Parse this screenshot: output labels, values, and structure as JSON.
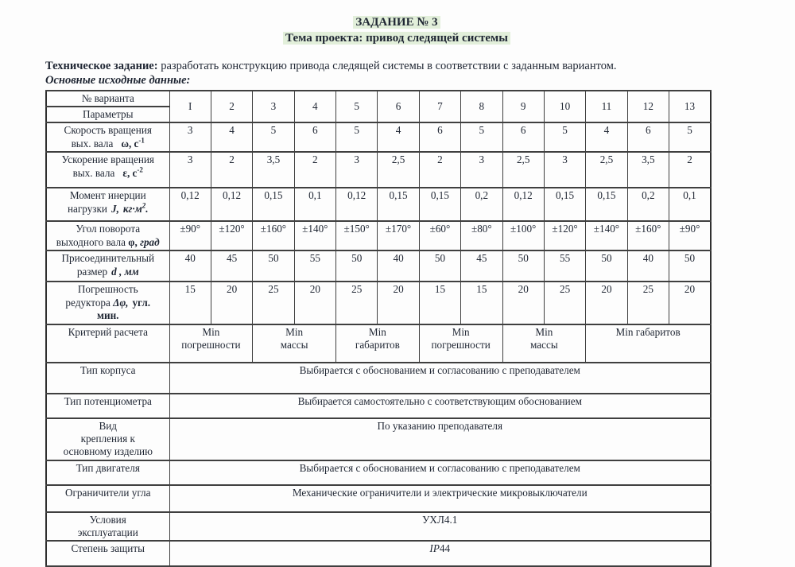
{
  "page": {
    "title": "ЗАДАНИЕ № 3",
    "subtitle": "Тема проекта: привод следящей системы",
    "tech_label": "Техническое задание:",
    "tech_text": " разработать конструкцию привода следящей системы в соответствии с заданным вариантом.",
    "data_label": "Основные исходные данные:",
    "highlight_color": "#e2efda"
  },
  "table": {
    "variant_header": "№ варианта",
    "params_header": "Параметры",
    "variants": [
      "I",
      "2",
      "3",
      "4",
      "5",
      "6",
      "7",
      "8",
      "9",
      "10",
      "11",
      "12",
      "13"
    ],
    "params": {
      "speed": {
        "l1": "Скорость вращения",
        "l2": "вых. вала",
        "sym": "ω, с",
        "sup": "-1",
        "values": [
          "3",
          "4",
          "5",
          "6",
          "5",
          "4",
          "6",
          "5",
          "6",
          "5",
          "4",
          "6",
          "5"
        ]
      },
      "accel": {
        "l1": "Ускорение вращения",
        "l2": "вых. вала",
        "sym": "ε, с",
        "sup": "-2",
        "values": [
          "3",
          "2",
          "3,5",
          "2",
          "3",
          "2,5",
          "2",
          "3",
          "2,5",
          "3",
          "2,5",
          "3,5",
          "2"
        ]
      },
      "inertia": {
        "l1": "Момент инерции",
        "l2": "нагрузки",
        "sym": "J,",
        "unit": "кг·м",
        "sup": "2",
        "tail": ".",
        "values": [
          "0,12",
          "0,12",
          "0,15",
          "0,1",
          "0,12",
          "0,15",
          "0,15",
          "0,2",
          "0,12",
          "0,15",
          "0,15",
          "0,2",
          "0,1"
        ]
      },
      "angle": {
        "l1": "Угол поворота",
        "l2": "выходного вала",
        "sym": "φ,",
        "unit": "град",
        "values": [
          "±90°",
          "±120°",
          "±160°",
          "±140°",
          "±150°",
          "±170°",
          "±60°",
          "±80°",
          "±100°",
          "±120°",
          "±140°",
          "±160°",
          "±90°"
        ]
      },
      "size": {
        "l1": "Присоединительный",
        "l2": "размер",
        "sym": "d , мм",
        "values": [
          "40",
          "45",
          "50",
          "55",
          "50",
          "40",
          "50",
          "45",
          "50",
          "55",
          "50",
          "40",
          "50"
        ]
      },
      "error": {
        "l1": "Погрешность",
        "l2": "редуктора",
        "sym": "Δφ,",
        "l2b": "угл.",
        "l3": "мин.",
        "values": [
          "15",
          "20",
          "25",
          "20",
          "25",
          "20",
          "15",
          "15",
          "20",
          "25",
          "20",
          "25",
          "20"
        ]
      }
    },
    "criteria_label": "Критерий расчета",
    "criteria": [
      {
        "l1": "Min",
        "l2": "погрешности"
      },
      {
        "l1": "Min",
        "l2": "массы"
      },
      {
        "l1": "Min",
        "l2": "габаритов"
      },
      {
        "l1": "Min",
        "l2": "погрешности"
      },
      {
        "l1": "Min",
        "l2": "массы"
      },
      {
        "l1": "Min габаритов",
        "l2": ""
      }
    ],
    "info_rows": [
      {
        "label": "Тип корпуса",
        "value": "Выбирается с обоснованием  и согласованию с преподавателем"
      },
      {
        "label": "Тип потенциометра",
        "value": "Выбирается самостоятельно с соответствующим обоснованием"
      },
      {
        "label": "Вид\nкрепления к\nосновному изделию",
        "value": "По указанию преподавателя"
      },
      {
        "label": "Тип двигателя",
        "value": "Выбирается с обоснованием  и согласованию с преподавателем"
      },
      {
        "label": "Ограничители угла",
        "value": "Механические ограничители и электрические микровыключатели"
      },
      {
        "label": "Условия\nэксплуатации",
        "value": "УХЛ4.1"
      },
      {
        "label": "Степень защиты",
        "value_prefix_italic": "IP",
        "value": "44"
      }
    ]
  }
}
